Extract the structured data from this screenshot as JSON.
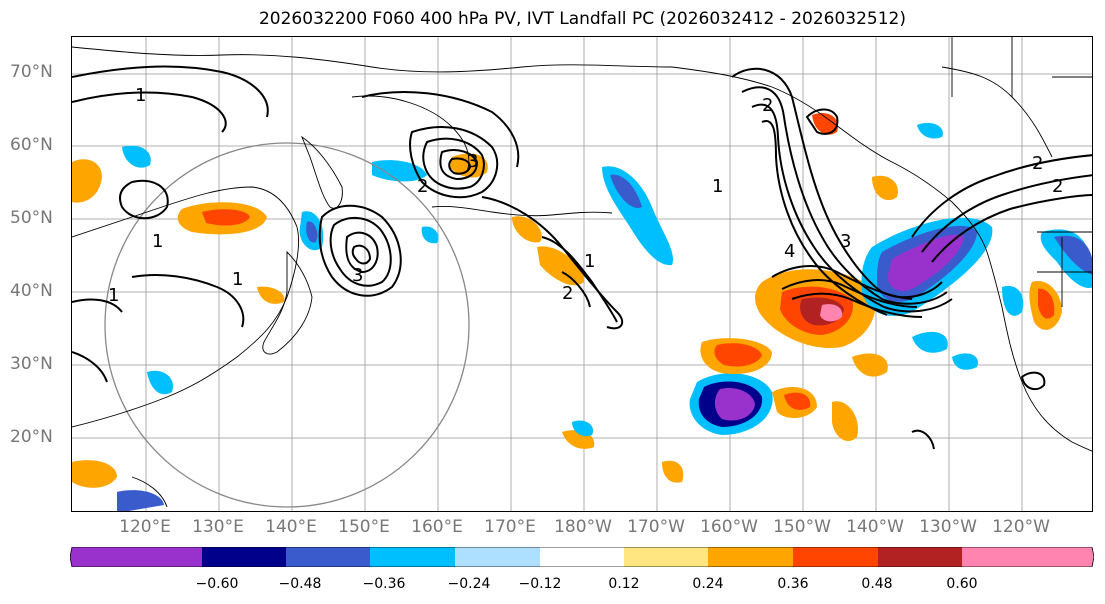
{
  "title": "2026032200 F060 400 hPa PV, IVT Landfall PC (2026032412 - 2026032512)",
  "lat_labels": [
    "70°N",
    "60°N",
    "50°N",
    "40°N",
    "30°N",
    "20°N"
  ],
  "lon_labels": [
    "120°E",
    "130°E",
    "140°E",
    "150°E",
    "160°E",
    "170°E",
    "180°W",
    "170°W",
    "160°W",
    "150°W",
    "140°W",
    "130°W",
    "120°W"
  ],
  "contour_labels": [
    "1",
    "1",
    "1",
    "1",
    "2",
    "2",
    "2",
    "2",
    "2",
    "3",
    "3",
    "3",
    "4",
    "1",
    "1"
  ],
  "colorbar": {
    "ticks": [
      "−0.60",
      "−0.48",
      "−0.36",
      "−0.24",
      "−0.12",
      "0.12",
      "0.24",
      "0.36",
      "0.48",
      "0.60"
    ],
    "colors": [
      "#9932CC",
      "#00008B",
      "#3A5BCC",
      "#00BFFF",
      "#ADDFFF",
      "#FFFFFF",
      "#FFE680",
      "#FFA500",
      "#FF4500",
      "#B22222",
      "#FF85B0"
    ]
  }
}
